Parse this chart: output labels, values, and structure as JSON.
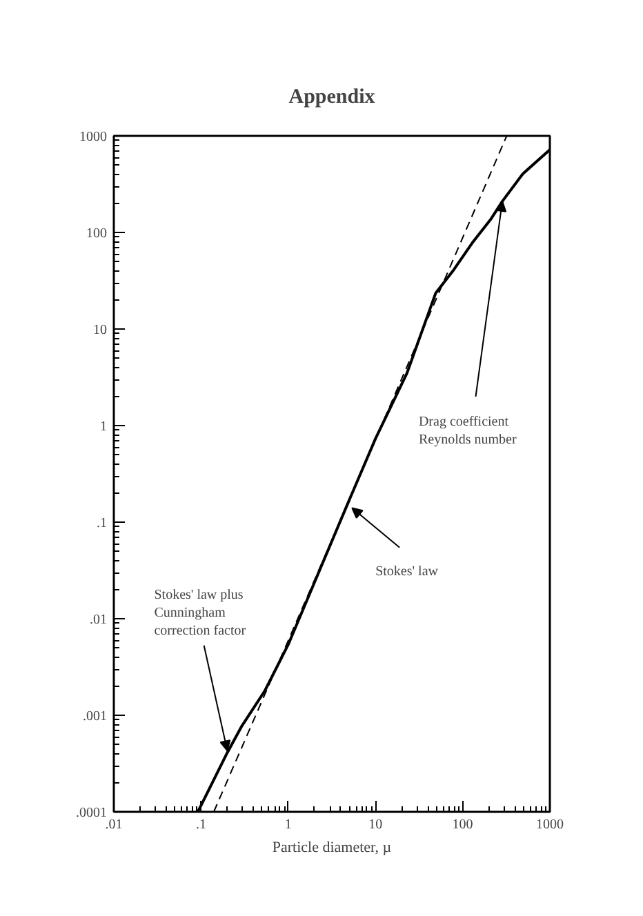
{
  "chart_data": {
    "type": "line",
    "title": "Appendix",
    "xlabel": "Particle diameter, µ",
    "log": "xy",
    "grid": false,
    "xlim": [
      0.01,
      1000
    ],
    "ylim": [
      0.0001,
      1000
    ],
    "xticks": [
      {
        "value": 0.01,
        "label": ".01"
      },
      {
        "value": 0.1,
        "label": ".1"
      },
      1,
      10,
      100,
      1000
    ],
    "yticks": [
      {
        "value": 0.0001,
        "label": ".0001"
      },
      {
        "value": 0.001,
        "label": ".001"
      },
      {
        "value": 0.01,
        "label": ".01"
      },
      {
        "value": 0.1,
        "label": ".1"
      },
      1,
      10,
      100,
      1000
    ],
    "series": [
      {
        "color": "#000000",
        "line_style": "solid",
        "x": [
          0.092,
          0.2,
          0.29,
          0.54,
          1,
          4.8,
          10,
          23,
          49,
          79,
          129,
          209,
          285,
          490,
          1000
        ],
        "values": [
          0.0001,
          0.00041,
          0.00076,
          0.0018,
          0.0054,
          0.155,
          0.73,
          3.5,
          23.5,
          41,
          78,
          136,
          210,
          405,
          720
        ]
      },
      {
        "color": "#000000",
        "line_style": "dashed",
        "x": [
          0.14,
          4.8,
          320
        ],
        "values": [
          0.0001,
          0.155,
          1000
        ]
      }
    ],
    "annotations": [
      {
        "text": "Drag coefficient\nReynolds number",
        "x": 285,
        "y": 210
      },
      {
        "text": "Stokes' law",
        "x": 5.4,
        "y": 0.14
      },
      {
        "text": "Stokes' law plus\nCunningham\ncorrection factor",
        "x": 0.2,
        "y": 0.00043
      }
    ]
  }
}
